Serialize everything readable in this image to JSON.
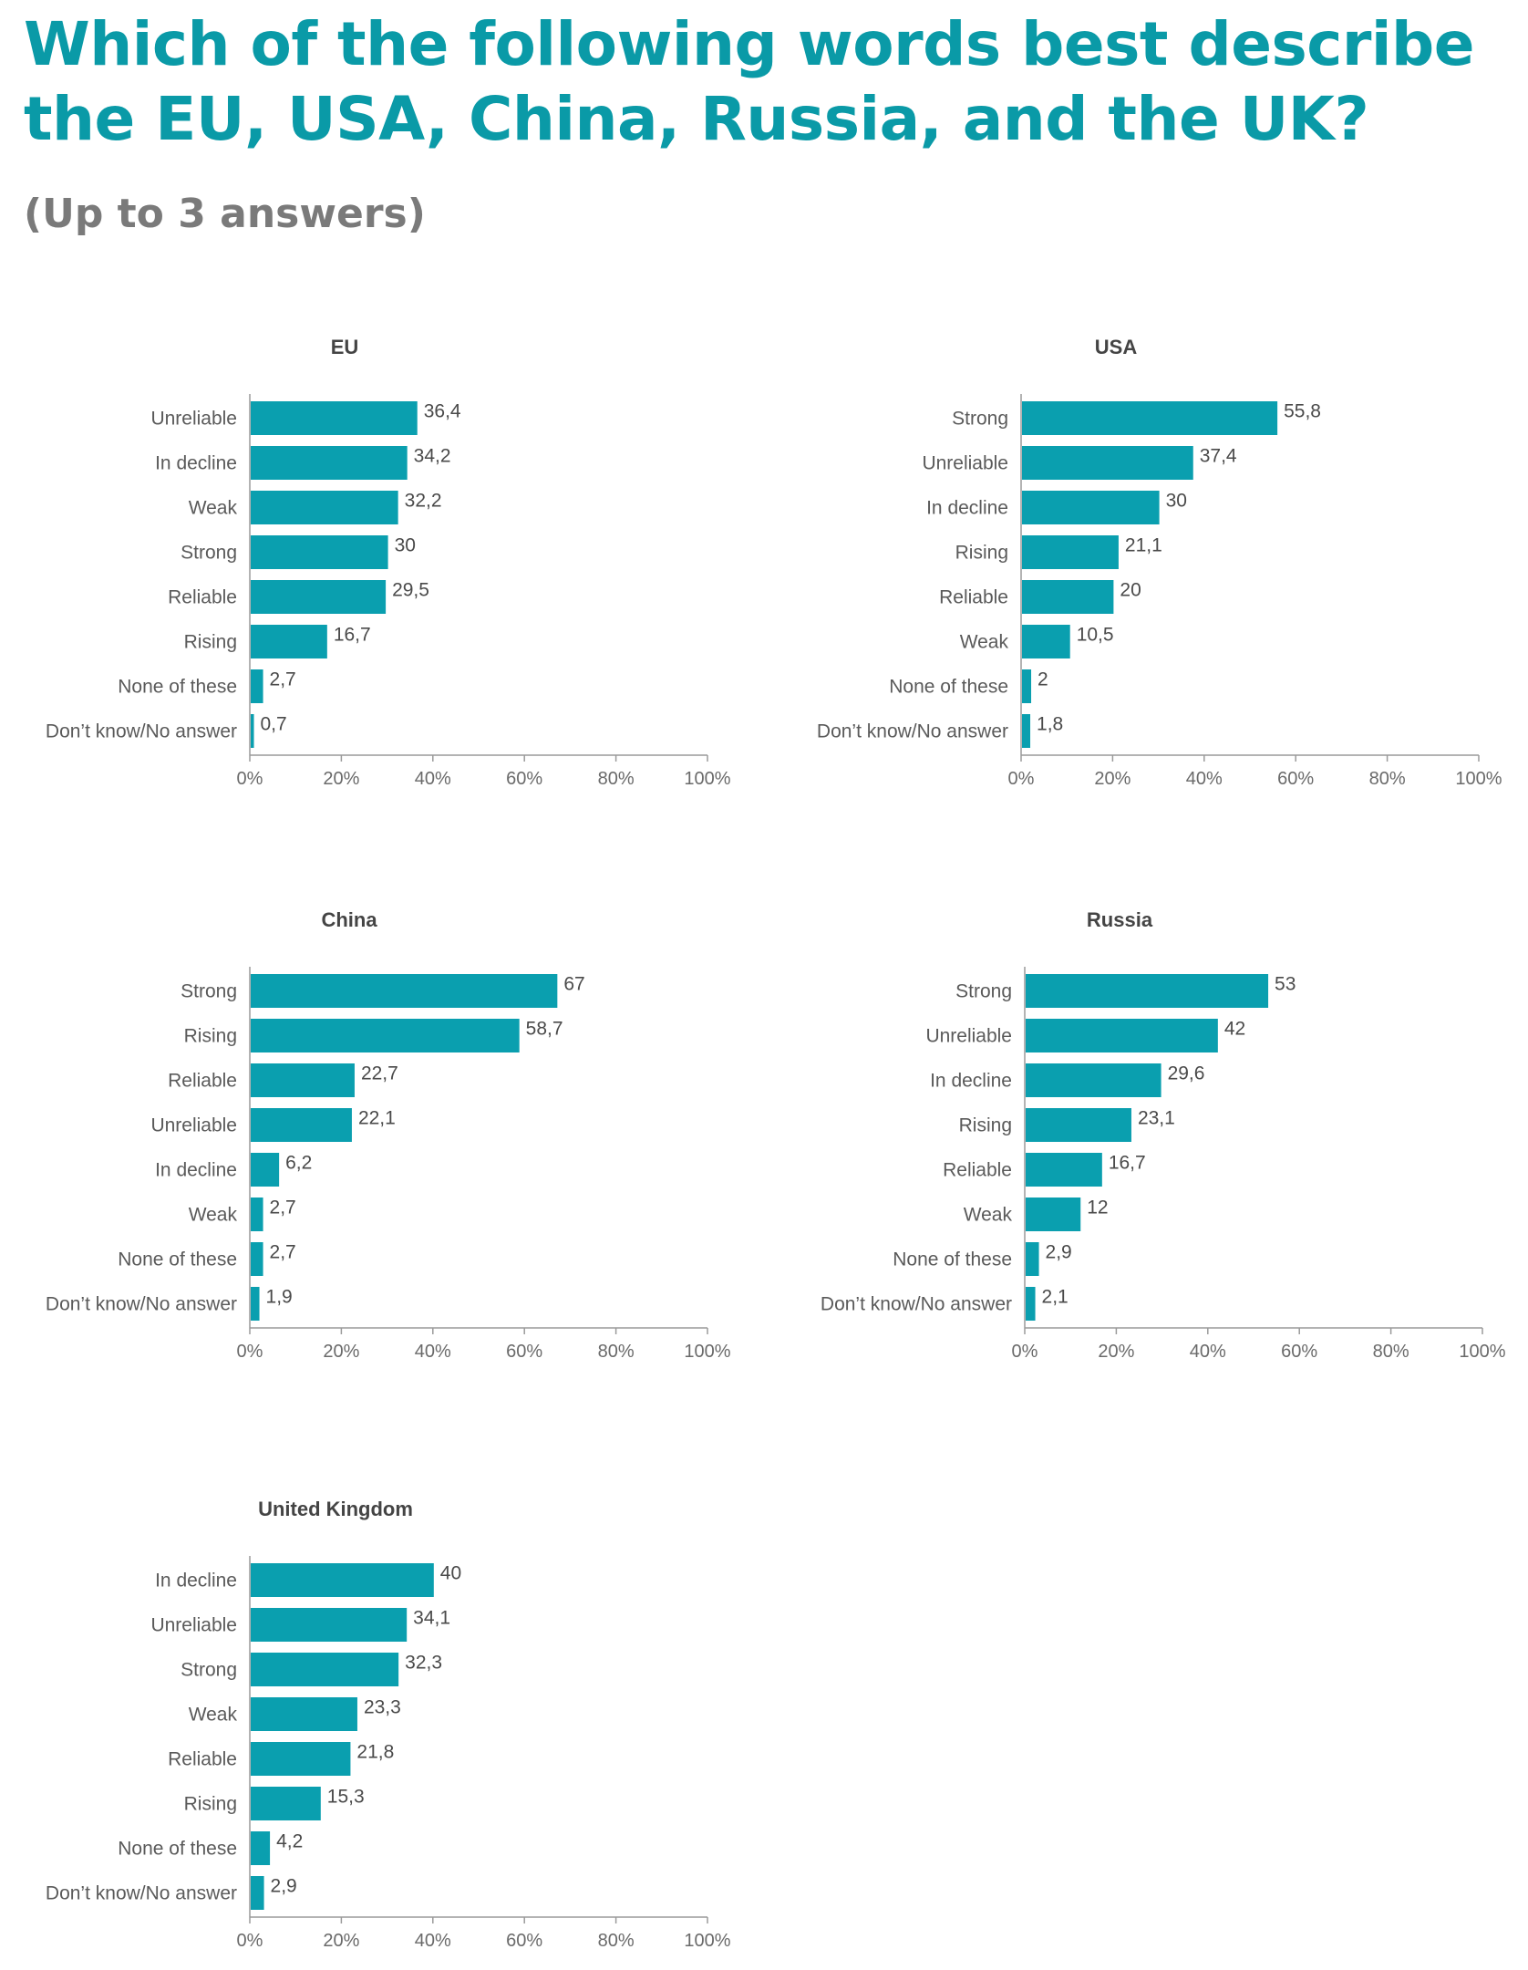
{
  "header": {
    "title": "Which of the following words best describe the EU, USA, China, Russia, and the UK?",
    "subtitle": "(Up to 3 answers)"
  },
  "colors": {
    "bar": "#0a9faf",
    "title": "#0a9aa7",
    "subtitle": "#7a7a7a"
  },
  "chart_data": [
    {
      "type": "bar",
      "orientation": "horizontal",
      "title": "EU",
      "categories": [
        "Unreliable",
        "In decline",
        "Weak",
        "Strong",
        "Reliable",
        "Rising",
        "None of these",
        "Don’t know/No answer"
      ],
      "values": [
        36.4,
        34.2,
        32.2,
        30,
        29.5,
        16.7,
        2.7,
        0.7
      ],
      "value_labels": [
        "36,4",
        "34,2",
        "32,2",
        "30",
        "29,5",
        "16,7",
        "2,7",
        "0,7"
      ],
      "xlim": [
        0,
        100
      ],
      "x_ticks": [
        "0%",
        "20%",
        "40%",
        "60%",
        "80%",
        "100%"
      ],
      "grid": false
    },
    {
      "type": "bar",
      "orientation": "horizontal",
      "title": "USA",
      "categories": [
        "Strong",
        "Unreliable",
        "In decline",
        "Rising",
        "Reliable",
        "Weak",
        "None of these",
        "Don’t know/No answer"
      ],
      "values": [
        55.8,
        37.4,
        30,
        21.1,
        20,
        10.5,
        2,
        1.8
      ],
      "value_labels": [
        "55,8",
        "37,4",
        "30",
        "21,1",
        "20",
        "10,5",
        "2",
        "1,8"
      ],
      "xlim": [
        0,
        100
      ],
      "x_ticks": [
        "0%",
        "20%",
        "40%",
        "60%",
        "80%",
        "100%"
      ],
      "grid": false
    },
    {
      "type": "bar",
      "orientation": "horizontal",
      "title": "China",
      "categories": [
        "Strong",
        "Rising",
        "Reliable",
        "Unreliable",
        "In decline",
        "Weak",
        "None of these",
        "Don’t know/No answer"
      ],
      "values": [
        67,
        58.7,
        22.7,
        22.1,
        6.2,
        2.7,
        2.7,
        1.9
      ],
      "value_labels": [
        "67",
        "58,7",
        "22,7",
        "22,1",
        "6,2",
        "2,7",
        "2,7",
        "1,9"
      ],
      "xlim": [
        0,
        100
      ],
      "x_ticks": [
        "0%",
        "20%",
        "40%",
        "60%",
        "80%",
        "100%"
      ],
      "grid": false
    },
    {
      "type": "bar",
      "orientation": "horizontal",
      "title": "Russia",
      "categories": [
        "Strong",
        "Unreliable",
        "In decline",
        "Rising",
        "Reliable",
        "Weak",
        "None of these",
        "Don’t know/No answer"
      ],
      "values": [
        53,
        42,
        29.6,
        23.1,
        16.7,
        12,
        2.9,
        2.1
      ],
      "value_labels": [
        "53",
        "42",
        "29,6",
        "23,1",
        "16,7",
        "12",
        "2,9",
        "2,1"
      ],
      "xlim": [
        0,
        100
      ],
      "x_ticks": [
        "0%",
        "20%",
        "40%",
        "60%",
        "80%",
        "100%"
      ],
      "grid": false
    },
    {
      "type": "bar",
      "orientation": "horizontal",
      "title": "United Kingdom",
      "categories": [
        "In decline",
        "Unreliable",
        "Strong",
        "Weak",
        "Reliable",
        "Rising",
        "None of these",
        "Don’t know/No answer"
      ],
      "values": [
        40,
        34.1,
        32.3,
        23.3,
        21.8,
        15.3,
        4.2,
        2.9
      ],
      "value_labels": [
        "40",
        "34,1",
        "32,3",
        "23,3",
        "21,8",
        "15,3",
        "4,2",
        "2,9"
      ],
      "xlim": [
        0,
        100
      ],
      "x_ticks": [
        "0%",
        "20%",
        "40%",
        "60%",
        "80%",
        "100%"
      ],
      "grid": false
    }
  ]
}
